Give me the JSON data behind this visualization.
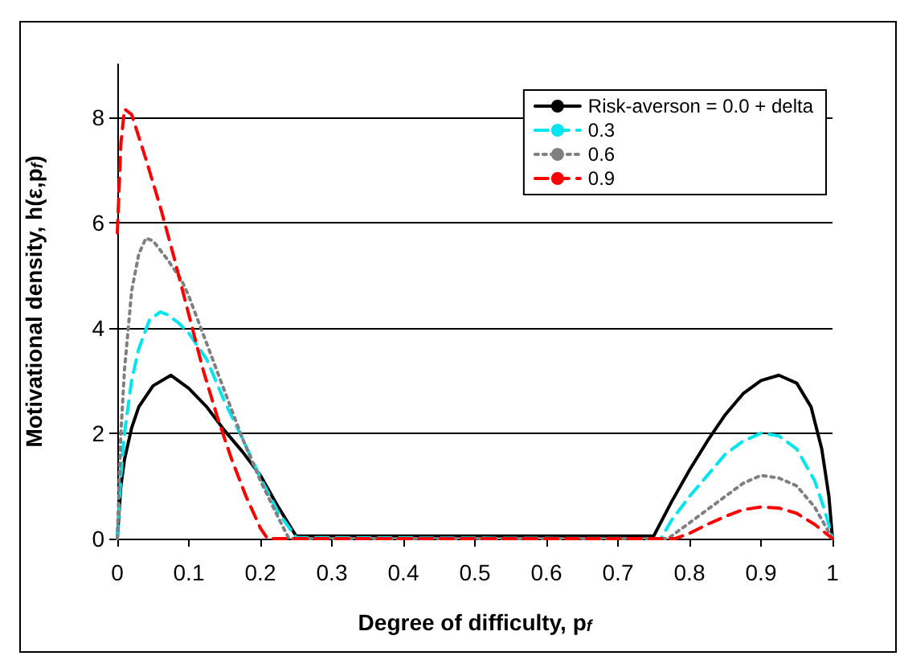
{
  "chart_data": {
    "type": "line",
    "xlabel": "Degree of difficulty, p$_{f}$",
    "ylabel": "Motivational density, h(ε,p$_{f}$)",
    "xlim": [
      0,
      1
    ],
    "xticks": [
      0,
      0.1,
      0.2,
      0.3,
      0.4,
      0.5,
      0.6,
      0.7,
      0.8,
      0.9,
      1
    ],
    "ylim": [
      0,
      9
    ],
    "yticks": [
      0,
      2,
      4,
      6,
      8
    ],
    "grid": "y",
    "legend": "top right",
    "marker": "none",
    "series": [
      {
        "name": "Risk-averson = 0.0 + delta",
        "color": "#000000",
        "line_style": "solid",
        "x": [
          0,
          0.005,
          0.01,
          0.02,
          0.03,
          0.05,
          0.075,
          0.1,
          0.125,
          0.15,
          0.175,
          0.2,
          0.225,
          0.25,
          0.75,
          0.775,
          0.8,
          0.825,
          0.85,
          0.875,
          0.9,
          0.925,
          0.95,
          0.97,
          0.985,
          0.995,
          1
        ],
        "values": [
          0,
          1.0,
          1.5,
          2.1,
          2.5,
          2.9,
          3.1,
          2.85,
          2.5,
          2.05,
          1.65,
          1.2,
          0.6,
          0.05,
          0.05,
          0.7,
          1.3,
          1.85,
          2.35,
          2.75,
          3.0,
          3.1,
          2.95,
          2.5,
          1.7,
          0.8,
          0
        ]
      },
      {
        "name": "0.3",
        "color": "#00e5ee",
        "line_style": "dashed",
        "x": [
          0,
          0.005,
          0.01,
          0.02,
          0.03,
          0.045,
          0.06,
          0.07,
          0.085,
          0.1,
          0.125,
          0.15,
          0.175,
          0.2,
          0.225,
          0.25,
          0.76,
          0.775,
          0.8,
          0.825,
          0.85,
          0.875,
          0.9,
          0.925,
          0.95,
          0.975,
          0.99,
          1
        ],
        "values": [
          0,
          1.2,
          2.0,
          3.0,
          3.6,
          4.15,
          4.3,
          4.25,
          4.1,
          3.9,
          3.4,
          2.6,
          1.9,
          1.15,
          0.5,
          0.02,
          0,
          0.35,
          0.8,
          1.2,
          1.6,
          1.85,
          2.0,
          1.95,
          1.7,
          1.1,
          0.5,
          0
        ]
      },
      {
        "name": "0.6",
        "color": "#808080",
        "line_style": "dotted",
        "x": [
          0,
          0.005,
          0.01,
          0.02,
          0.03,
          0.04,
          0.05,
          0.07,
          0.09,
          0.1,
          0.125,
          0.15,
          0.175,
          0.2,
          0.225,
          0.24,
          0.77,
          0.8,
          0.85,
          0.875,
          0.9,
          0.925,
          0.95,
          0.975,
          1
        ],
        "values": [
          0,
          2.0,
          3.2,
          4.7,
          5.4,
          5.7,
          5.65,
          5.3,
          4.9,
          4.6,
          3.7,
          2.8,
          1.9,
          1.1,
          0.4,
          0,
          0,
          0.3,
          0.8,
          1.05,
          1.2,
          1.15,
          1.0,
          0.6,
          0
        ]
      },
      {
        "name": "0.9",
        "color": "#ff0000",
        "line_style": "dashed",
        "x": [
          0,
          0.005,
          0.01,
          0.02,
          0.04,
          0.06,
          0.08,
          0.1,
          0.12,
          0.14,
          0.16,
          0.18,
          0.2,
          0.21,
          0.78,
          0.8,
          0.825,
          0.85,
          0.875,
          0.9,
          0.925,
          0.95,
          0.975,
          1
        ],
        "values": [
          5.8,
          7.5,
          8.15,
          8.05,
          7.2,
          6.3,
          5.3,
          4.25,
          3.2,
          2.3,
          1.5,
          0.8,
          0.2,
          0,
          0,
          0.1,
          0.27,
          0.42,
          0.55,
          0.6,
          0.58,
          0.48,
          0.27,
          0
        ]
      }
    ]
  }
}
